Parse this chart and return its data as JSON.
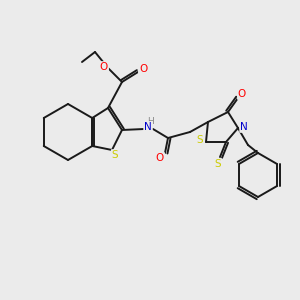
{
  "bg_color": "#ebebeb",
  "bond_color": "#1a1a1a",
  "atom_colors": {
    "O": "#ff0000",
    "N": "#0000cc",
    "S": "#cccc00",
    "H": "#888888",
    "C": "#1a1a1a"
  },
  "figsize": [
    3.0,
    3.0
  ],
  "dpi": 100,
  "lw": 1.4,
  "fontsize": 7.5
}
